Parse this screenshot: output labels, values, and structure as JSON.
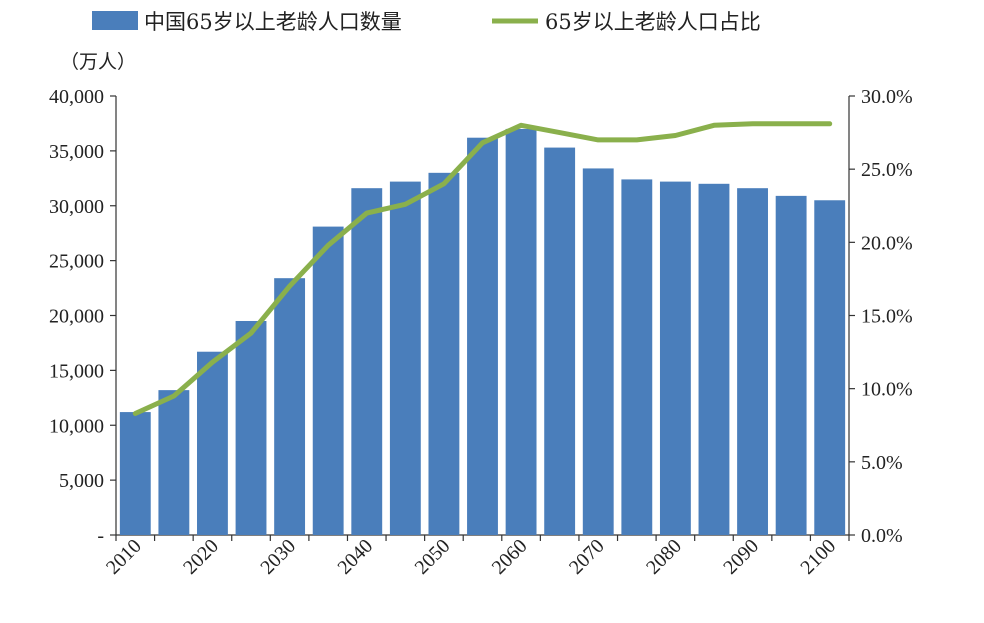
{
  "chart_data": {
    "type": "bar",
    "categories": [
      "2010",
      "2015",
      "2020",
      "2025",
      "2030",
      "2035",
      "2040",
      "2045",
      "2050",
      "2055",
      "2060",
      "2065",
      "2070",
      "2075",
      "2080",
      "2085",
      "2090",
      "2095",
      "2100"
    ],
    "x_tick_labels": [
      "2010",
      "2020",
      "2030",
      "2040",
      "2050",
      "2060",
      "2070",
      "2080",
      "2090",
      "2100"
    ],
    "series": [
      {
        "name": "中国65岁以上老龄人口数量",
        "type": "bar",
        "axis": "left",
        "color": "#4a7ebb",
        "values": [
          11200,
          13200,
          16700,
          19500,
          23400,
          28100,
          31600,
          32200,
          33000,
          36200,
          37000,
          35300,
          33400,
          32400,
          32200,
          32000,
          31600,
          30900,
          30500
        ]
      },
      {
        "name": "65岁以上老龄人口占比",
        "type": "line",
        "axis": "right",
        "color": "#8ab04c",
        "values": [
          8.3,
          9.5,
          11.8,
          13.8,
          17.0,
          19.8,
          22.0,
          22.6,
          24.0,
          26.8,
          28.0,
          27.5,
          27.0,
          27.0,
          27.3,
          28.0,
          28.1,
          28.1,
          28.1
        ]
      }
    ],
    "y_left": {
      "unit": "（万人）",
      "ylim": [
        0,
        40000
      ],
      "tick_labels": [
        "-",
        "5,000",
        "10,000",
        "15,000",
        "20,000",
        "25,000",
        "30,000",
        "35,000",
        "40,000"
      ]
    },
    "y_right": {
      "ylim": [
        0,
        30
      ],
      "tick_labels": [
        "0.0%",
        "5.0%",
        "10.0%",
        "15.0%",
        "20.0%",
        "25.0%",
        "30.0%"
      ]
    },
    "legend": "top",
    "grid": false
  }
}
